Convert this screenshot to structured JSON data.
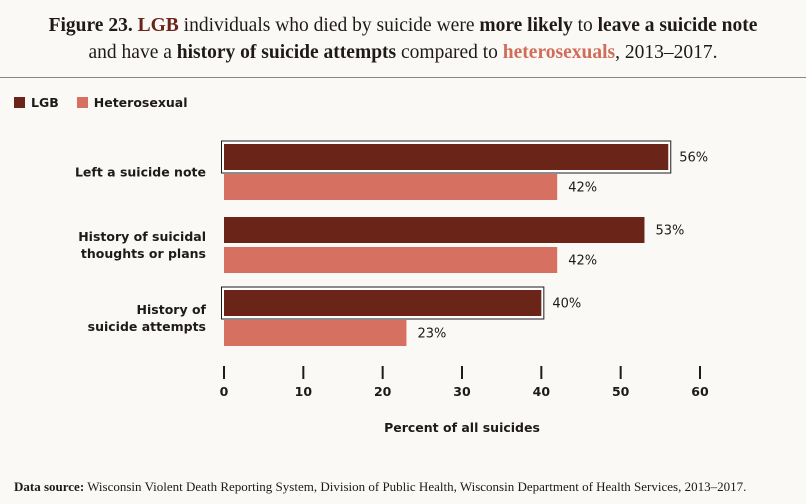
{
  "title": {
    "line1": {
      "prefix": "Figure 23.",
      "group": "LGB",
      "t1": "individuals who died by suicide were",
      "more_likely": "more likely",
      "t2": "to",
      "leave_note": "leave a suicide note"
    },
    "line2": {
      "t1": "and have a",
      "history": "history of suicide attempts",
      "t2": "compared to",
      "hetero": "heterosexuals",
      "t3": ", 2013–2017."
    }
  },
  "legend": {
    "lgb": "LGB",
    "hetero": "Heterosexual"
  },
  "colors": {
    "lgb": "#6a2418",
    "hetero": "#d67060",
    "highlight_border": "#1e1a18"
  },
  "footer": {
    "label": "Data source:",
    "text": "Wisconsin Violent Death Reporting System, Division of Public Health, Wisconsin Department of Health Services, 2013–2017."
  },
  "chart_data": {
    "type": "bar",
    "orientation": "horizontal",
    "categories": [
      [
        "Left a suicide note"
      ],
      [
        "History of suicidal",
        "thoughts or plans"
      ],
      [
        "History of",
        "suicide attempts"
      ]
    ],
    "series": [
      {
        "name": "LGB",
        "values": [
          56,
          53,
          40
        ],
        "labels": [
          "56%",
          "53%",
          "40%"
        ],
        "highlighted": [
          true,
          false,
          true
        ]
      },
      {
        "name": "Heterosexual",
        "values": [
          42,
          42,
          23
        ],
        "labels": [
          "42%",
          "42%",
          "23%"
        ],
        "highlighted": [
          false,
          false,
          false
        ]
      }
    ],
    "xlabel": "Percent of all suicides",
    "xlim": [
      0,
      60
    ],
    "xticks": [
      0,
      10,
      20,
      30,
      40,
      50,
      60
    ],
    "legend_position": "top-left"
  }
}
